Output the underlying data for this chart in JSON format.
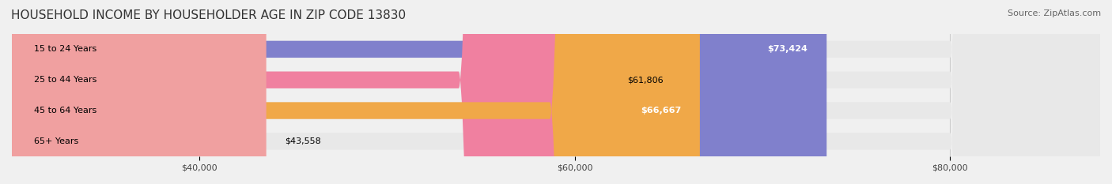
{
  "title": "HOUSEHOLD INCOME BY HOUSEHOLDER AGE IN ZIP CODE 13830",
  "source": "Source: ZipAtlas.com",
  "categories": [
    "15 to 24 Years",
    "25 to 44 Years",
    "45 to 64 Years",
    "65+ Years"
  ],
  "values": [
    73424,
    61806,
    66667,
    43558
  ],
  "bar_colors": [
    "#8080cc",
    "#f080a0",
    "#f0a848",
    "#f0a0a0"
  ],
  "bar_label_colors": [
    "white",
    "black",
    "white",
    "black"
  ],
  "label_inside": [
    true,
    false,
    true,
    false
  ],
  "x_ticks": [
    40000,
    60000,
    80000
  ],
  "x_tick_labels": [
    "$40,000",
    "$60,000",
    "$80,000"
  ],
  "xlim_left": 30000,
  "xlim_right": 88000,
  "background_color": "#f0f0f0",
  "bar_bg_color": "#e8e8e8",
  "title_fontsize": 11,
  "source_fontsize": 8,
  "bar_height": 0.55,
  "figsize": [
    14.06,
    2.33
  ],
  "dpi": 100
}
